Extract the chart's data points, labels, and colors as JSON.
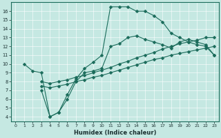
{
  "xlabel": "Humidex (Indice chaleur)",
  "bg_color": "#c5e8e2",
  "line_color": "#1a6b5a",
  "xlim": [
    -0.5,
    23.5
  ],
  "ylim": [
    3.5,
    17.0
  ],
  "yticks": [
    4,
    5,
    6,
    7,
    8,
    9,
    10,
    11,
    12,
    13,
    14,
    15,
    16
  ],
  "xticks": [
    0,
    1,
    2,
    3,
    4,
    5,
    6,
    7,
    8,
    9,
    10,
    11,
    12,
    13,
    14,
    15,
    16,
    17,
    18,
    19,
    20,
    21,
    22,
    23
  ],
  "line1_x": [
    1,
    2,
    3,
    4,
    5,
    6,
    7,
    8,
    9,
    10,
    11,
    12,
    13,
    14,
    15,
    16,
    17,
    18,
    19,
    20,
    21,
    22,
    23
  ],
  "line1_y": [
    10.0,
    9.2,
    9.0,
    4.0,
    4.5,
    6.5,
    8.3,
    9.5,
    10.2,
    11.0,
    16.5,
    16.5,
    16.5,
    16.0,
    16.0,
    15.5,
    14.8,
    13.5,
    13.0,
    12.5,
    12.2,
    12.0,
    11.0
  ],
  "line2_x": [
    3,
    4,
    5,
    6,
    7,
    8,
    9,
    10,
    11,
    12,
    13,
    14,
    15,
    16,
    17,
    18,
    19,
    20,
    21,
    22,
    23
  ],
  "line2_y": [
    8.0,
    7.8,
    8.0,
    8.2,
    8.5,
    8.7,
    9.0,
    9.3,
    9.6,
    10.0,
    10.3,
    10.7,
    11.0,
    11.3,
    11.7,
    12.0,
    12.3,
    12.5,
    12.7,
    13.0,
    13.0
  ],
  "line3_x": [
    3,
    4,
    5,
    6,
    7,
    8,
    9,
    10,
    11,
    12,
    13,
    14,
    15,
    16,
    17,
    18,
    19,
    20,
    21,
    22,
    23
  ],
  "line3_y": [
    7.5,
    7.3,
    7.5,
    7.7,
    8.0,
    8.2,
    8.5,
    8.7,
    9.0,
    9.3,
    9.6,
    9.9,
    10.2,
    10.5,
    10.7,
    11.0,
    11.2,
    11.4,
    11.6,
    11.8,
    12.0
  ],
  "line4_x": [
    3,
    4,
    5,
    6,
    7,
    8,
    9,
    10,
    11,
    12,
    13,
    14,
    15,
    16,
    17,
    18,
    19,
    20,
    21,
    22,
    23
  ],
  "line4_y": [
    7.0,
    4.0,
    4.5,
    6.0,
    8.0,
    9.0,
    9.2,
    9.5,
    12.0,
    12.3,
    13.0,
    13.2,
    12.8,
    12.5,
    12.2,
    11.8,
    12.5,
    12.8,
    12.5,
    12.2,
    11.0
  ],
  "marker_size": 2.5,
  "linewidth": 0.8
}
